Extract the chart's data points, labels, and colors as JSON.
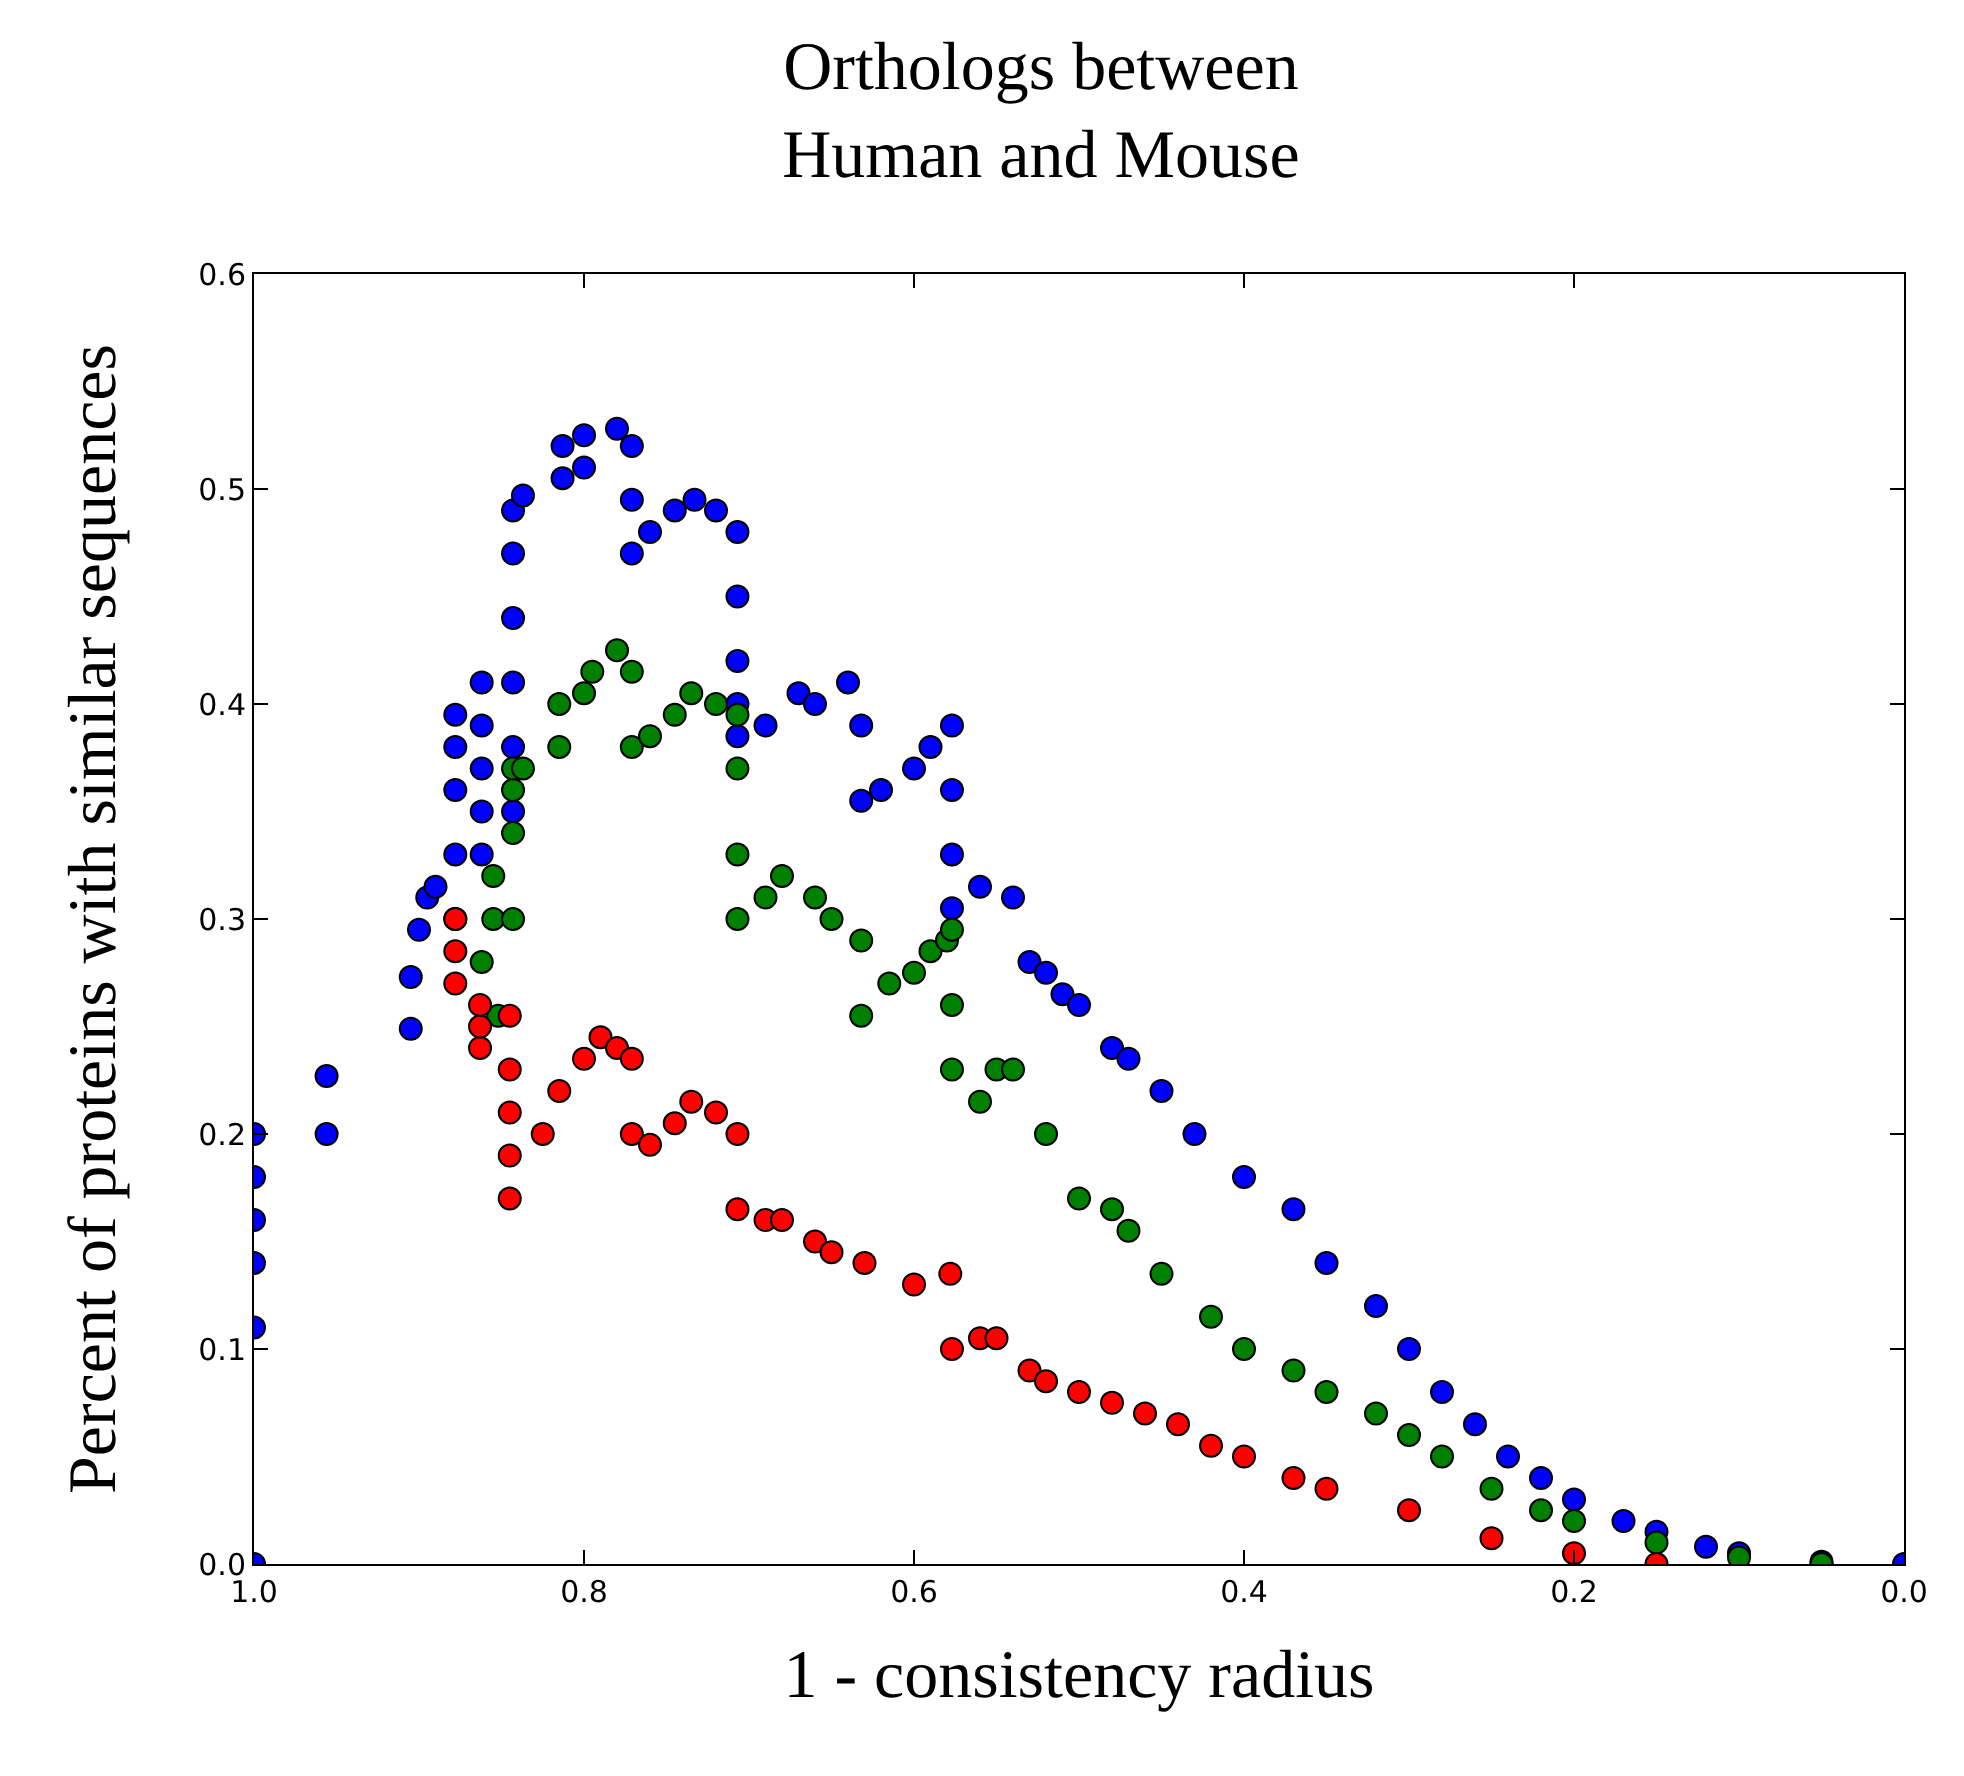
{
  "chart_data": {
    "type": "scatter",
    "title": "Orthologs between\nHuman and Mouse",
    "xlabel": "1 - consistency radius",
    "ylabel": "Percent of proteins with similar sequences",
    "xlim": [
      1.0,
      0.0
    ],
    "xticks": [
      {
        "value": 1.0,
        "label": "1.0"
      },
      {
        "value": 0.8,
        "label": "0.8"
      },
      {
        "value": 0.6,
        "label": "0.6"
      },
      {
        "value": 0.4,
        "label": "0.4"
      },
      {
        "value": 0.2,
        "label": "0.2"
      },
      {
        "value": 0.0,
        "label": "0.0"
      }
    ],
    "ylim": [
      0.0,
      0.6
    ],
    "yticks": [
      {
        "value": 0.0,
        "label": "0.0"
      },
      {
        "value": 0.1,
        "label": "0.1"
      },
      {
        "value": 0.2,
        "label": "0.2"
      },
      {
        "value": 0.3,
        "label": "0.3"
      },
      {
        "value": 0.4,
        "label": "0.4"
      },
      {
        "value": 0.5,
        "label": "0.5"
      },
      {
        "value": 0.6,
        "label": "0.6"
      }
    ],
    "marker": "circle",
    "series": [
      {
        "color": "#0000ff",
        "x": [
          1.0,
          1.0,
          1.0,
          1.0,
          1.0,
          1.0,
          0.956,
          0.956,
          0.905,
          0.905,
          0.9,
          0.895,
          0.89,
          0.878,
          0.878,
          0.878,
          0.878,
          0.878,
          0.862,
          0.862,
          0.862,
          0.862,
          0.862,
          0.843,
          0.843,
          0.843,
          0.843,
          0.843,
          0.843,
          0.837,
          0.813,
          0.813,
          0.8,
          0.8,
          0.78,
          0.771,
          0.771,
          0.771,
          0.76,
          0.745,
          0.733,
          0.72,
          0.707,
          0.707,
          0.707,
          0.707,
          0.707,
          0.69,
          0.67,
          0.66,
          0.64,
          0.632,
          0.632,
          0.62,
          0.6,
          0.59,
          0.577,
          0.577,
          0.577,
          0.577,
          0.56,
          0.54,
          0.53,
          0.52,
          0.51,
          0.5,
          0.48,
          0.47,
          0.45,
          0.43,
          0.4,
          0.37,
          0.35,
          0.32,
          0.3,
          0.28,
          0.26,
          0.24,
          0.22,
          0.2,
          0.17,
          0.15,
          0.12,
          0.1,
          0.05,
          0.0
        ],
        "values": [
          0.0,
          0.11,
          0.14,
          0.16,
          0.18,
          0.2,
          0.2,
          0.227,
          0.249,
          0.273,
          0.295,
          0.31,
          0.315,
          0.3,
          0.33,
          0.36,
          0.38,
          0.395,
          0.33,
          0.35,
          0.37,
          0.39,
          0.41,
          0.35,
          0.38,
          0.41,
          0.44,
          0.47,
          0.49,
          0.497,
          0.505,
          0.52,
          0.51,
          0.525,
          0.528,
          0.52,
          0.495,
          0.47,
          0.48,
          0.49,
          0.495,
          0.49,
          0.48,
          0.45,
          0.42,
          0.4,
          0.385,
          0.39,
          0.405,
          0.4,
          0.41,
          0.39,
          0.355,
          0.36,
          0.37,
          0.38,
          0.39,
          0.36,
          0.33,
          0.305,
          0.315,
          0.31,
          0.28,
          0.275,
          0.265,
          0.26,
          0.24,
          0.235,
          0.22,
          0.2,
          0.18,
          0.165,
          0.14,
          0.12,
          0.1,
          0.08,
          0.065,
          0.05,
          0.04,
          0.03,
          0.02,
          0.015,
          0.008,
          0.005,
          0.001,
          0.0
        ]
      },
      {
        "color": "#008000",
        "x": [
          0.852,
          0.862,
          0.855,
          0.855,
          0.843,
          0.843,
          0.843,
          0.843,
          0.837,
          0.815,
          0.815,
          0.8,
          0.795,
          0.78,
          0.771,
          0.771,
          0.76,
          0.745,
          0.735,
          0.72,
          0.707,
          0.707,
          0.707,
          0.707,
          0.69,
          0.68,
          0.66,
          0.65,
          0.632,
          0.632,
          0.615,
          0.6,
          0.59,
          0.58,
          0.577,
          0.577,
          0.577,
          0.56,
          0.55,
          0.54,
          0.52,
          0.5,
          0.48,
          0.47,
          0.45,
          0.42,
          0.4,
          0.37,
          0.35,
          0.32,
          0.3,
          0.28,
          0.25,
          0.22,
          0.2,
          0.15,
          0.1,
          0.05
        ],
        "values": [
          0.255,
          0.28,
          0.3,
          0.32,
          0.3,
          0.34,
          0.36,
          0.37,
          0.37,
          0.38,
          0.4,
          0.405,
          0.415,
          0.425,
          0.415,
          0.38,
          0.385,
          0.395,
          0.405,
          0.4,
          0.395,
          0.37,
          0.33,
          0.3,
          0.31,
          0.32,
          0.31,
          0.3,
          0.29,
          0.255,
          0.27,
          0.275,
          0.285,
          0.29,
          0.295,
          0.26,
          0.23,
          0.215,
          0.23,
          0.23,
          0.2,
          0.17,
          0.165,
          0.155,
          0.135,
          0.115,
          0.1,
          0.09,
          0.08,
          0.07,
          0.06,
          0.05,
          0.035,
          0.025,
          0.02,
          0.01,
          0.003,
          0.0
        ]
      },
      {
        "color": "#ff0000",
        "x": [
          0.878,
          0.878,
          0.878,
          0.863,
          0.863,
          0.863,
          0.845,
          0.845,
          0.845,
          0.845,
          0.845,
          0.825,
          0.815,
          0.8,
          0.79,
          0.78,
          0.771,
          0.771,
          0.76,
          0.745,
          0.735,
          0.72,
          0.707,
          0.707,
          0.69,
          0.68,
          0.66,
          0.65,
          0.63,
          0.6,
          0.578,
          0.577,
          0.56,
          0.55,
          0.53,
          0.52,
          0.5,
          0.48,
          0.46,
          0.44,
          0.42,
          0.4,
          0.37,
          0.35,
          0.3,
          0.25,
          0.2,
          0.15
        ],
        "values": [
          0.27,
          0.285,
          0.3,
          0.24,
          0.25,
          0.26,
          0.17,
          0.19,
          0.21,
          0.23,
          0.255,
          0.2,
          0.22,
          0.235,
          0.245,
          0.24,
          0.235,
          0.2,
          0.195,
          0.205,
          0.215,
          0.21,
          0.2,
          0.165,
          0.16,
          0.16,
          0.15,
          0.145,
          0.14,
          0.13,
          0.135,
          0.1,
          0.105,
          0.105,
          0.09,
          0.085,
          0.08,
          0.075,
          0.07,
          0.065,
          0.055,
          0.05,
          0.04,
          0.035,
          0.025,
          0.012,
          0.005,
          0.0
        ]
      }
    ]
  }
}
